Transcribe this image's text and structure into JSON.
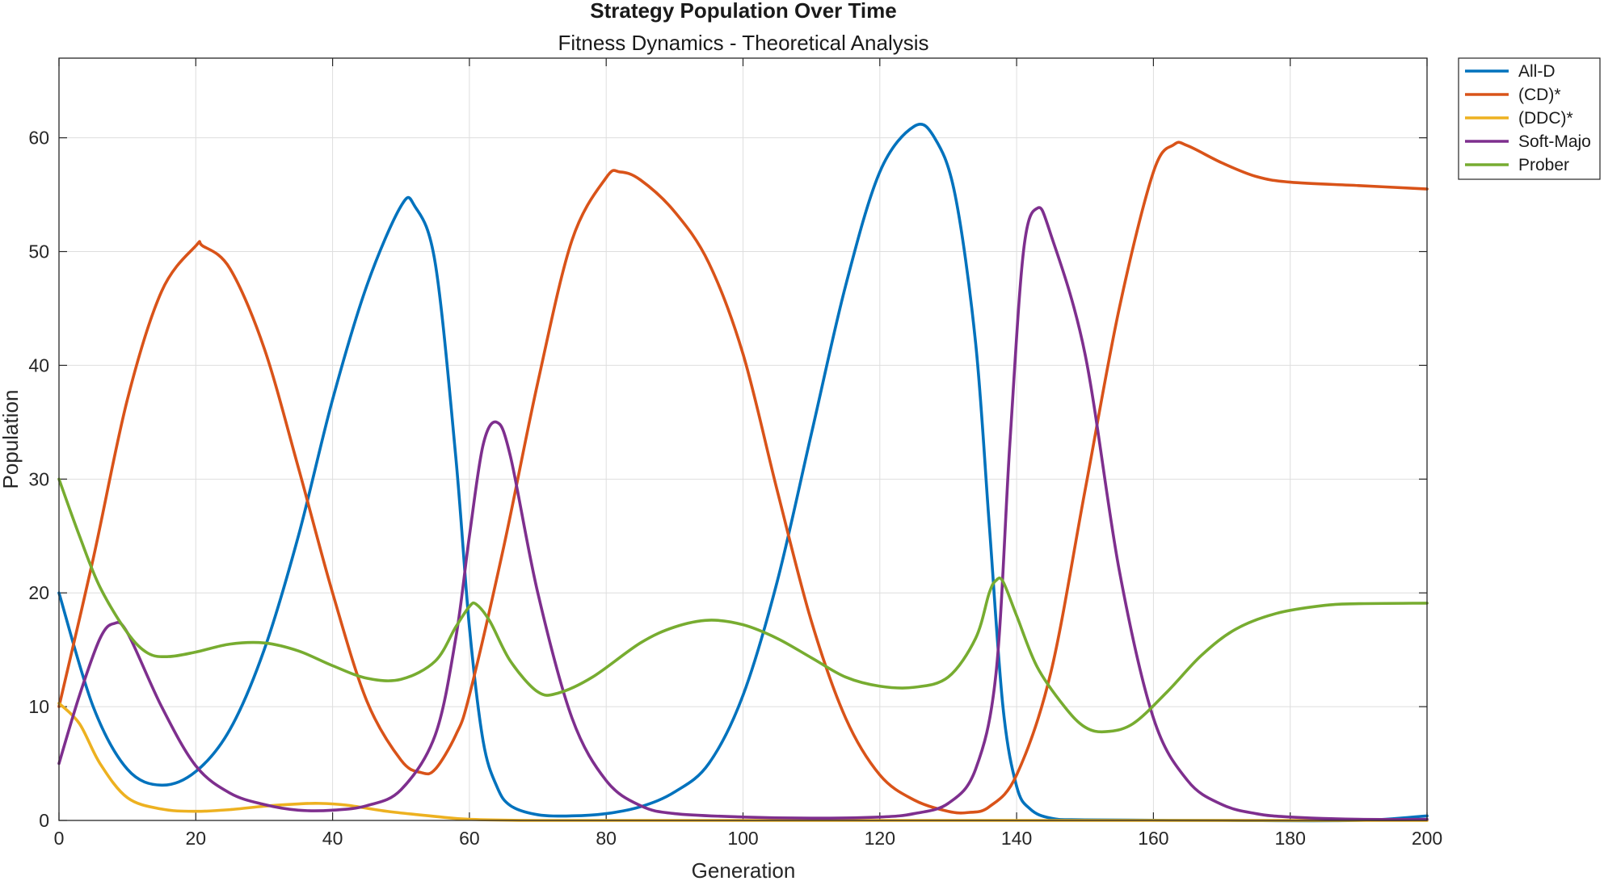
{
  "chart_data": {
    "type": "line",
    "title": "Strategy Population Over Time",
    "subtitle": "Fitness Dynamics - Theoretical Analysis",
    "xlabel": "Generation",
    "ylabel": "Population",
    "xlim": [
      0,
      200
    ],
    "ylim": [
      0,
      67
    ],
    "xticks": [
      0,
      20,
      40,
      60,
      80,
      100,
      120,
      140,
      160,
      180,
      200
    ],
    "yticks": [
      0,
      10,
      20,
      30,
      40,
      50,
      60
    ],
    "grid": true,
    "legend_position": "outside-top-right",
    "series": [
      {
        "name": "All-D",
        "color": "#0072BD",
        "points": [
          [
            0,
            20
          ],
          [
            5,
            10
          ],
          [
            10,
            4.5
          ],
          [
            15,
            3.1
          ],
          [
            20,
            4.3
          ],
          [
            25,
            8
          ],
          [
            30,
            15
          ],
          [
            35,
            25
          ],
          [
            40,
            37
          ],
          [
            45,
            47
          ],
          [
            50,
            54
          ],
          [
            52,
            54
          ],
          [
            55,
            49
          ],
          [
            58,
            32
          ],
          [
            60,
            17
          ],
          [
            62,
            7
          ],
          [
            64,
            3
          ],
          [
            66,
            1.3
          ],
          [
            70,
            0.5
          ],
          [
            75,
            0.4
          ],
          [
            80,
            0.6
          ],
          [
            85,
            1.2
          ],
          [
            90,
            2.5
          ],
          [
            95,
            5
          ],
          [
            100,
            11
          ],
          [
            105,
            21
          ],
          [
            110,
            34
          ],
          [
            115,
            47
          ],
          [
            120,
            57
          ],
          [
            125,
            61
          ],
          [
            128,
            60
          ],
          [
            131,
            55
          ],
          [
            134,
            42
          ],
          [
            136,
            26
          ],
          [
            138,
            10
          ],
          [
            140,
            3
          ],
          [
            142,
            1
          ],
          [
            145,
            0.2
          ],
          [
            150,
            0.05
          ],
          [
            170,
            0
          ],
          [
            190,
            0
          ],
          [
            200,
            0.4
          ]
        ]
      },
      {
        "name": "(CD)*",
        "color": "#D95319",
        "points": [
          [
            0,
            10
          ],
          [
            5,
            23
          ],
          [
            10,
            37
          ],
          [
            15,
            46.5
          ],
          [
            20,
            50.5
          ],
          [
            21,
            50.5
          ],
          [
            25,
            48.5
          ],
          [
            30,
            41.5
          ],
          [
            35,
            31
          ],
          [
            40,
            20
          ],
          [
            45,
            10.5
          ],
          [
            50,
            5.3
          ],
          [
            53,
            4.2
          ],
          [
            55,
            4.5
          ],
          [
            58,
            7.5
          ],
          [
            60,
            11
          ],
          [
            65,
            24
          ],
          [
            70,
            38.5
          ],
          [
            75,
            51
          ],
          [
            80,
            56.5
          ],
          [
            82,
            57
          ],
          [
            85,
            56.3
          ],
          [
            90,
            53.5
          ],
          [
            95,
            49
          ],
          [
            100,
            41
          ],
          [
            105,
            29
          ],
          [
            110,
            17.5
          ],
          [
            115,
            9
          ],
          [
            120,
            4
          ],
          [
            125,
            1.8
          ],
          [
            130,
            0.8
          ],
          [
            133,
            0.7
          ],
          [
            136,
            1.2
          ],
          [
            140,
            4
          ],
          [
            145,
            13
          ],
          [
            150,
            29
          ],
          [
            155,
            45
          ],
          [
            160,
            57
          ],
          [
            163,
            59.4
          ],
          [
            165,
            59.3
          ],
          [
            170,
            57.8
          ],
          [
            175,
            56.6
          ],
          [
            180,
            56.1
          ],
          [
            190,
            55.8
          ],
          [
            200,
            55.5
          ]
        ]
      },
      {
        "name": "(DDC)*",
        "color": "#EDB120",
        "points": [
          [
            0,
            10.3
          ],
          [
            3,
            8.5
          ],
          [
            6,
            5
          ],
          [
            10,
            2
          ],
          [
            15,
            1
          ],
          [
            20,
            0.8
          ],
          [
            25,
            0.95
          ],
          [
            30,
            1.25
          ],
          [
            35,
            1.45
          ],
          [
            38,
            1.5
          ],
          [
            42,
            1.35
          ],
          [
            48,
            0.8
          ],
          [
            55,
            0.35
          ],
          [
            60,
            0.1
          ],
          [
            70,
            0
          ],
          [
            100,
            0
          ],
          [
            150,
            0
          ],
          [
            200,
            0
          ]
        ]
      },
      {
        "name": "Soft-Majo",
        "color": "#7E2F8E",
        "points": [
          [
            0,
            5
          ],
          [
            3,
            11
          ],
          [
            6,
            16
          ],
          [
            8,
            17.3
          ],
          [
            10,
            16.5
          ],
          [
            15,
            10
          ],
          [
            20,
            4.8
          ],
          [
            25,
            2.4
          ],
          [
            30,
            1.4
          ],
          [
            35,
            0.9
          ],
          [
            40,
            0.9
          ],
          [
            45,
            1.3
          ],
          [
            50,
            2.7
          ],
          [
            55,
            7.5
          ],
          [
            58,
            16
          ],
          [
            60,
            25
          ],
          [
            62,
            33
          ],
          [
            64,
            35
          ],
          [
            66,
            32
          ],
          [
            70,
            20
          ],
          [
            75,
            9
          ],
          [
            80,
            3.5
          ],
          [
            85,
            1.3
          ],
          [
            90,
            0.6
          ],
          [
            100,
            0.3
          ],
          [
            110,
            0.2
          ],
          [
            120,
            0.3
          ],
          [
            125,
            0.6
          ],
          [
            130,
            1.5
          ],
          [
            134,
            4.5
          ],
          [
            137,
            13
          ],
          [
            139,
            33
          ],
          [
            141,
            50
          ],
          [
            143,
            53.8
          ],
          [
            145,
            51.5
          ],
          [
            150,
            41
          ],
          [
            155,
            22
          ],
          [
            160,
            9
          ],
          [
            165,
            3.5
          ],
          [
            170,
            1.4
          ],
          [
            175,
            0.6
          ],
          [
            180,
            0.3
          ],
          [
            190,
            0.1
          ],
          [
            200,
            0.1
          ]
        ]
      },
      {
        "name": "Prober",
        "color": "#77AC30",
        "points": [
          [
            0,
            30
          ],
          [
            3,
            25
          ],
          [
            6,
            20.5
          ],
          [
            10,
            16.5
          ],
          [
            13,
            14.7
          ],
          [
            16,
            14.4
          ],
          [
            20,
            14.8
          ],
          [
            25,
            15.5
          ],
          [
            30,
            15.6
          ],
          [
            35,
            14.9
          ],
          [
            40,
            13.6
          ],
          [
            45,
            12.5
          ],
          [
            50,
            12.4
          ],
          [
            55,
            14
          ],
          [
            58,
            17
          ],
          [
            60,
            18.8
          ],
          [
            61,
            19
          ],
          [
            63,
            17.5
          ],
          [
            66,
            14
          ],
          [
            70,
            11.3
          ],
          [
            73,
            11.2
          ],
          [
            78,
            12.6
          ],
          [
            85,
            15.6
          ],
          [
            90,
            17
          ],
          [
            95,
            17.6
          ],
          [
            100,
            17.2
          ],
          [
            105,
            16
          ],
          [
            110,
            14.3
          ],
          [
            115,
            12.6
          ],
          [
            120,
            11.8
          ],
          [
            125,
            11.7
          ],
          [
            130,
            12.6
          ],
          [
            134,
            16
          ],
          [
            136,
            20
          ],
          [
            137,
            21.1
          ],
          [
            138,
            21
          ],
          [
            140,
            18
          ],
          [
            143,
            13.5
          ],
          [
            147,
            10
          ],
          [
            150,
            8.2
          ],
          [
            153,
            7.8
          ],
          [
            157,
            8.5
          ],
          [
            162,
            11.3
          ],
          [
            167,
            14.5
          ],
          [
            172,
            16.8
          ],
          [
            178,
            18.2
          ],
          [
            185,
            18.9
          ],
          [
            190,
            19.05
          ],
          [
            200,
            19.1
          ]
        ]
      }
    ]
  }
}
